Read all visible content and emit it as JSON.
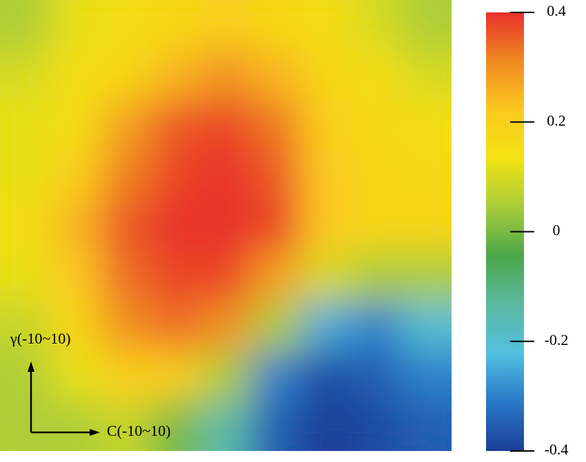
{
  "chart_data": {
    "type": "heatmap",
    "x_label": "C(-10~10)",
    "y_label": "γ(-10~10)",
    "values": [
      [
        0.05,
        0.12,
        0.15,
        0.18,
        0.2,
        0.18,
        0.15,
        0.1,
        0.05
      ],
      [
        0.1,
        0.15,
        0.18,
        0.25,
        0.3,
        0.25,
        0.18,
        0.15,
        0.1
      ],
      [
        0.12,
        0.15,
        0.28,
        0.36,
        0.38,
        0.33,
        0.2,
        0.17,
        0.15
      ],
      [
        0.12,
        0.2,
        0.32,
        0.38,
        0.4,
        0.36,
        0.22,
        0.18,
        0.17
      ],
      [
        0.15,
        0.25,
        0.36,
        0.4,
        0.4,
        0.38,
        0.22,
        0.18,
        0.18
      ],
      [
        0.12,
        0.22,
        0.34,
        0.38,
        0.38,
        0.28,
        0.1,
        0.05,
        0.05
      ],
      [
        0.08,
        0.18,
        0.3,
        0.34,
        0.3,
        0.05,
        -0.25,
        -0.3,
        -0.2
      ],
      [
        0.05,
        0.12,
        0.2,
        0.2,
        0.05,
        -0.3,
        -0.38,
        -0.35,
        -0.3
      ],
      [
        0.05,
        0.05,
        0.08,
        0.0,
        -0.15,
        -0.35,
        -0.4,
        -0.38,
        -0.35
      ]
    ],
    "zlim": [
      -0.4,
      0.4
    ],
    "zticks": [
      -0.4,
      -0.2,
      0,
      0.2,
      0.4
    ],
    "colormap": [
      "#1b3e98",
      "#2a78c8",
      "#52c0e0",
      "#5cb8a0",
      "#4aa84a",
      "#a8cc3a",
      "#f2e312",
      "#fcc820",
      "#f08a22",
      "#e8302a"
    ]
  }
}
